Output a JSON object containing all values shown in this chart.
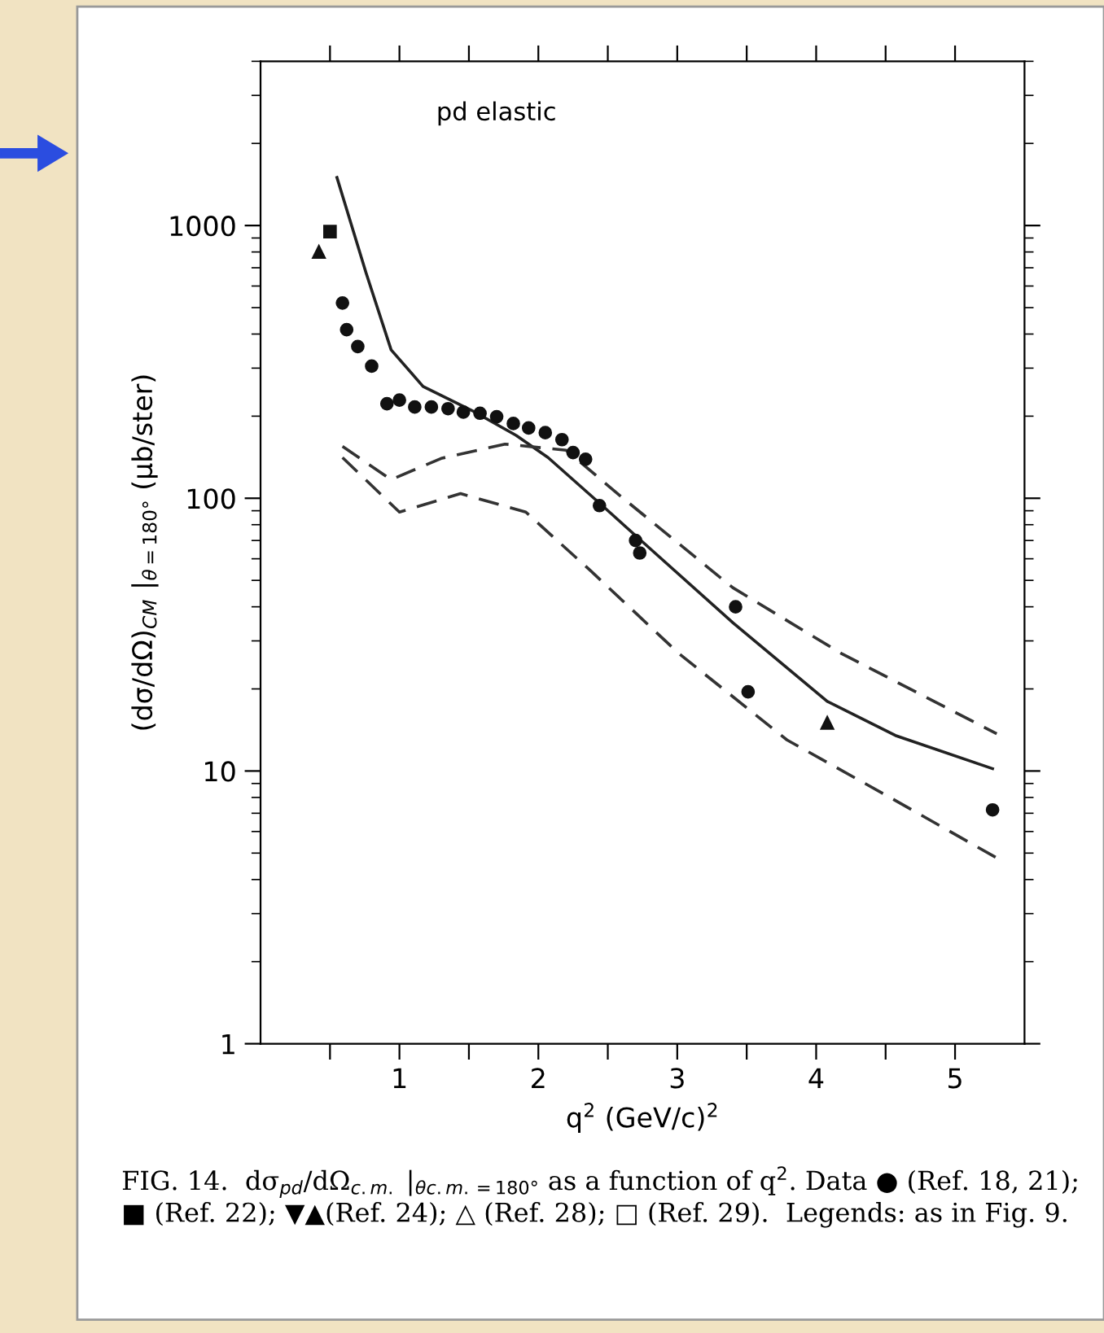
{
  "chart_data": {
    "type": "scatter",
    "xlabel": "q$^{2}$ (GeV/c)$^{2}$",
    "ylabel": "(dσ/dΩ)$_{CM}$ |$_{θ=180°}$ (μb/ster)",
    "log": "y",
    "xlim": [
      0,
      5.5
    ],
    "ylim": [
      1,
      4000
    ],
    "xticks": [
      {
        "value": 0.5,
        "label": null
      },
      1,
      {
        "value": 1.5,
        "label": null
      },
      2,
      {
        "value": 2.5,
        "label": null
      },
      3,
      {
        "value": 3.5,
        "label": null
      },
      4,
      {
        "value": 4.5,
        "label": null
      },
      5
    ],
    "yticks": [
      1,
      10,
      100,
      1000
    ],
    "grid": false,
    "legend": false,
    "annotations": [
      "pd elastic",
      "FIG. 14.  dσ$_{pd}$/dΩ$_{c.m.}$ |$_{θc.m.=180°}$ as a function of q$^{2}$. Data ● (Ref. 18, 21); ■ (Ref. 22); ▼▲(Ref. 24); △ (Ref. 28); □ (Ref. 29).  Legends: as in Fig. 9."
    ],
    "series": [
      {
        "type": "line",
        "color": "#222222",
        "line_style": "solid",
        "x": [
          0.55,
          0.76,
          0.94,
          1.17,
          1.52,
          1.84,
          2.07,
          2.46,
          2.81,
          3.4,
          4.08,
          4.57,
          5.27
        ],
        "values": [
          1500,
          670,
          350,
          257,
          210,
          170,
          141,
          94,
          65,
          35,
          18,
          13.5,
          10.2
        ]
      },
      {
        "type": "line",
        "color": "#333333",
        "line_style": "dashed",
        "x": [
          0.59,
          0.94,
          1.3,
          1.76,
          2.2,
          2.61,
          3.4,
          4.18,
          5.3
        ],
        "values": [
          155,
          117,
          140,
          158,
          150,
          100,
          47,
          27,
          13.7
        ]
      },
      {
        "type": "line",
        "color": "#333333",
        "line_style": "dashed",
        "x": [
          0.59,
          1.0,
          1.44,
          1.91,
          2.38,
          3.01,
          3.79,
          4.57,
          5.3
        ],
        "values": [
          141,
          89,
          104,
          89,
          54,
          27,
          13,
          7.8,
          4.8
        ]
      },
      {
        "marker": "circle",
        "color": "#111111",
        "x": [
          0.59,
          0.62,
          0.7,
          0.8,
          0.91,
          1.0,
          1.11,
          1.23,
          1.35,
          1.46,
          1.58,
          1.7,
          1.82,
          1.93,
          2.05,
          2.17,
          2.25,
          2.34,
          2.44,
          2.7,
          2.73,
          3.42,
          3.51,
          5.27
        ],
        "values": [
          520,
          415,
          360,
          305,
          222,
          229,
          216,
          216,
          213,
          207,
          205,
          199,
          188,
          181,
          174,
          164,
          147,
          139,
          94,
          70,
          63,
          40,
          19.5,
          7.2
        ]
      },
      {
        "marker": "triangle",
        "color": "#111111",
        "x": [
          0.42,
          4.08
        ],
        "values": [
          800,
          15
        ]
      },
      {
        "marker": "square",
        "color": "#111111",
        "x": [
          0.5
        ],
        "values": [
          950
        ]
      }
    ]
  }
}
